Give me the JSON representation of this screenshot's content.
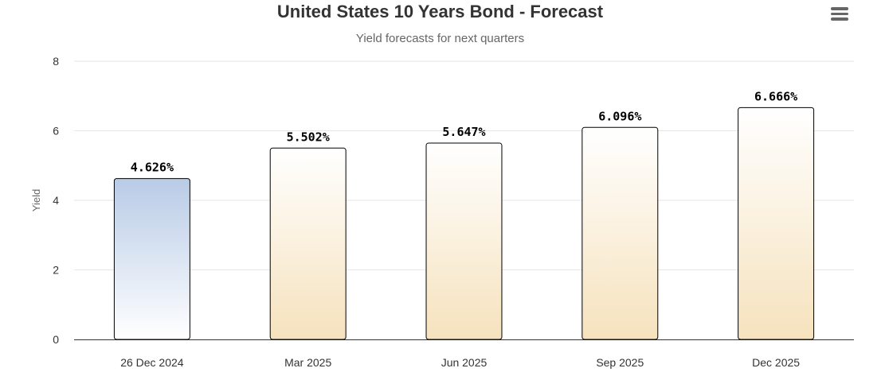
{
  "menu_icon": "hamburger-menu-icon",
  "chart_data": {
    "type": "bar",
    "title": "United States 10 Years Bond - Forecast",
    "subtitle": "Yield forecasts for next quarters",
    "xlabel": "",
    "ylabel": "Yield",
    "categories": [
      "26 Dec 2024",
      "Mar 2025",
      "Jun 2025",
      "Sep 2025",
      "Dec 2025"
    ],
    "values": [
      4.626,
      5.502,
      5.647,
      6.096,
      6.666
    ],
    "data_labels": [
      "4.626%",
      "5.502%",
      "5.647%",
      "6.096%",
      "6.666%"
    ],
    "ylim": [
      0,
      8
    ],
    "yticks": [
      0,
      2,
      4,
      6,
      8
    ],
    "grid": true,
    "legend": "none",
    "colors": {
      "current": {
        "top": "#b8cbe6",
        "bottom": "#ffffff"
      },
      "forecast": {
        "top": "#ffffff",
        "bottom": "#f6e2bd"
      },
      "border": "#000000",
      "gridline": "#e6e6e6",
      "axis": "#333333"
    }
  }
}
